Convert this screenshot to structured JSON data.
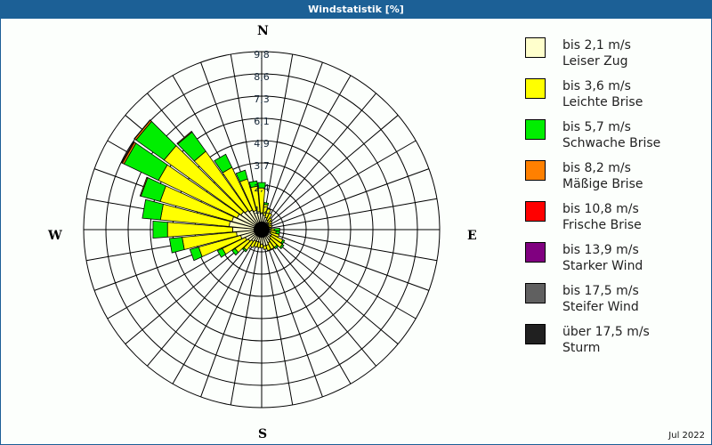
{
  "title": "Windstatistik [%]",
  "date_label": "Jul 2022",
  "compass": {
    "N": "N",
    "E": "E",
    "S": "S",
    "W": "W"
  },
  "legend": [
    {
      "range": "bis 2,1 m/s",
      "name": "Leiser Zug",
      "color": "#ffffcc"
    },
    {
      "range": "bis 3,6 m/s",
      "name": "Leichte Brise",
      "color": "#ffff00"
    },
    {
      "range": "bis 5,7 m/s",
      "name": "Schwache Brise",
      "color": "#00ee00"
    },
    {
      "range": "bis 8,2 m/s",
      "name": "Mäßige Brise",
      "color": "#ff8000"
    },
    {
      "range": "bis 10,8 m/s",
      "name": "Frische Brise",
      "color": "#ff0000"
    },
    {
      "range": "bis 13,9 m/s",
      "name": "Starker Wind",
      "color": "#800080"
    },
    {
      "range": "bis 17,5 m/s",
      "name": "Steifer Wind",
      "color": "#606060"
    },
    {
      "range": "über 17,5 m/s",
      "name": "Sturm",
      "color": "#202020"
    }
  ],
  "chart_data": {
    "type": "polar-stacked-bar",
    "title": "Windstatistik [%]",
    "subtitle": "Jul 2022",
    "ring_labels": [
      "1,2",
      "2,4",
      "3,7",
      "4,9",
      "6,1",
      "7,3",
      "8,6",
      "9,8"
    ],
    "rmax": 9.8,
    "direction_step_deg": 10,
    "directions_deg": [
      0,
      10,
      20,
      30,
      40,
      50,
      60,
      70,
      80,
      90,
      100,
      110,
      120,
      130,
      140,
      150,
      160,
      170,
      180,
      190,
      200,
      210,
      220,
      230,
      240,
      250,
      260,
      270,
      280,
      290,
      300,
      310,
      320,
      330,
      340,
      350
    ],
    "series": [
      {
        "name": "bis 2,1 m/s",
        "values": [
          0.9,
          0.8,
          0.7,
          0.6,
          0.5,
          0.5,
          0.4,
          0.4,
          0.4,
          0.5,
          0.5,
          0.5,
          0.6,
          0.6,
          0.7,
          0.8,
          0.9,
          0.9,
          0.8,
          0.7,
          0.7,
          0.7,
          0.8,
          0.9,
          1.0,
          1.2,
          1.4,
          1.6,
          1.8,
          1.7,
          1.5,
          1.4,
          1.3,
          1.2,
          1.1,
          1.0
        ]
      },
      {
        "name": "bis 3,6 m/s",
        "values": [
          1.4,
          0.6,
          0.5,
          0.4,
          0.3,
          0.2,
          0.2,
          0.2,
          0.1,
          0.2,
          0.3,
          0.5,
          0.7,
          0.8,
          0.5,
          0.4,
          0.3,
          0.2,
          0.2,
          0.3,
          0.3,
          0.4,
          0.6,
          0.9,
          1.4,
          2.4,
          3.0,
          3.6,
          3.8,
          4.1,
          4.8,
          5.2,
          4.0,
          2.6,
          1.8,
          1.4
        ]
      },
      {
        "name": "bis 5,7 m/s",
        "values": [
          0.3,
          0.1,
          0.0,
          0.0,
          0.0,
          0.0,
          0.0,
          0.0,
          0.0,
          0.3,
          0.2,
          0.0,
          0.1,
          0.1,
          0.1,
          0.0,
          0.0,
          0.0,
          0.0,
          0.0,
          0.0,
          0.0,
          0.1,
          0.2,
          0.3,
          0.5,
          0.7,
          0.8,
          1.0,
          1.1,
          2.1,
          1.9,
          1.3,
          0.8,
          0.5,
          0.3
        ]
      },
      {
        "name": "bis 8,2 m/s",
        "values": [
          0,
          0,
          0,
          0,
          0,
          0,
          0,
          0,
          0,
          0,
          0,
          0,
          0,
          0,
          0,
          0,
          0,
          0,
          0,
          0,
          0,
          0,
          0,
          0,
          0,
          0,
          0,
          0,
          0,
          0.05,
          0.1,
          0.1,
          0.05,
          0,
          0,
          0
        ]
      },
      {
        "name": "bis 10,8 m/s",
        "values": [
          0,
          0,
          0,
          0,
          0,
          0,
          0,
          0,
          0,
          0,
          0,
          0,
          0,
          0,
          0,
          0,
          0,
          0,
          0,
          0,
          0,
          0,
          0,
          0,
          0,
          0,
          0,
          0,
          0,
          0,
          0.05,
          0.02,
          0,
          0,
          0,
          0
        ]
      },
      {
        "name": "bis 13,9 m/s",
        "values": [
          0,
          0,
          0,
          0,
          0,
          0,
          0,
          0,
          0,
          0,
          0,
          0,
          0,
          0,
          0,
          0,
          0,
          0,
          0,
          0,
          0,
          0,
          0,
          0,
          0,
          0,
          0,
          0,
          0,
          0,
          0,
          0,
          0,
          0,
          0,
          0
        ]
      },
      {
        "name": "bis 17,5 m/s",
        "values": [
          0,
          0,
          0,
          0,
          0,
          0,
          0,
          0,
          0,
          0,
          0,
          0,
          0,
          0,
          0,
          0,
          0,
          0,
          0,
          0,
          0,
          0,
          0,
          0,
          0,
          0,
          0,
          0,
          0,
          0,
          0,
          0,
          0,
          0,
          0,
          0
        ]
      },
      {
        "name": "über 17,5 m/s",
        "values": [
          0,
          0,
          0,
          0,
          0,
          0,
          0,
          0,
          0,
          0,
          0,
          0,
          0,
          0,
          0,
          0,
          0,
          0,
          0,
          0,
          0,
          0,
          0,
          0,
          0,
          0,
          0,
          0,
          0,
          0,
          0,
          0,
          0,
          0,
          0,
          0
        ]
      }
    ],
    "legend_position": "right",
    "grid": true
  }
}
